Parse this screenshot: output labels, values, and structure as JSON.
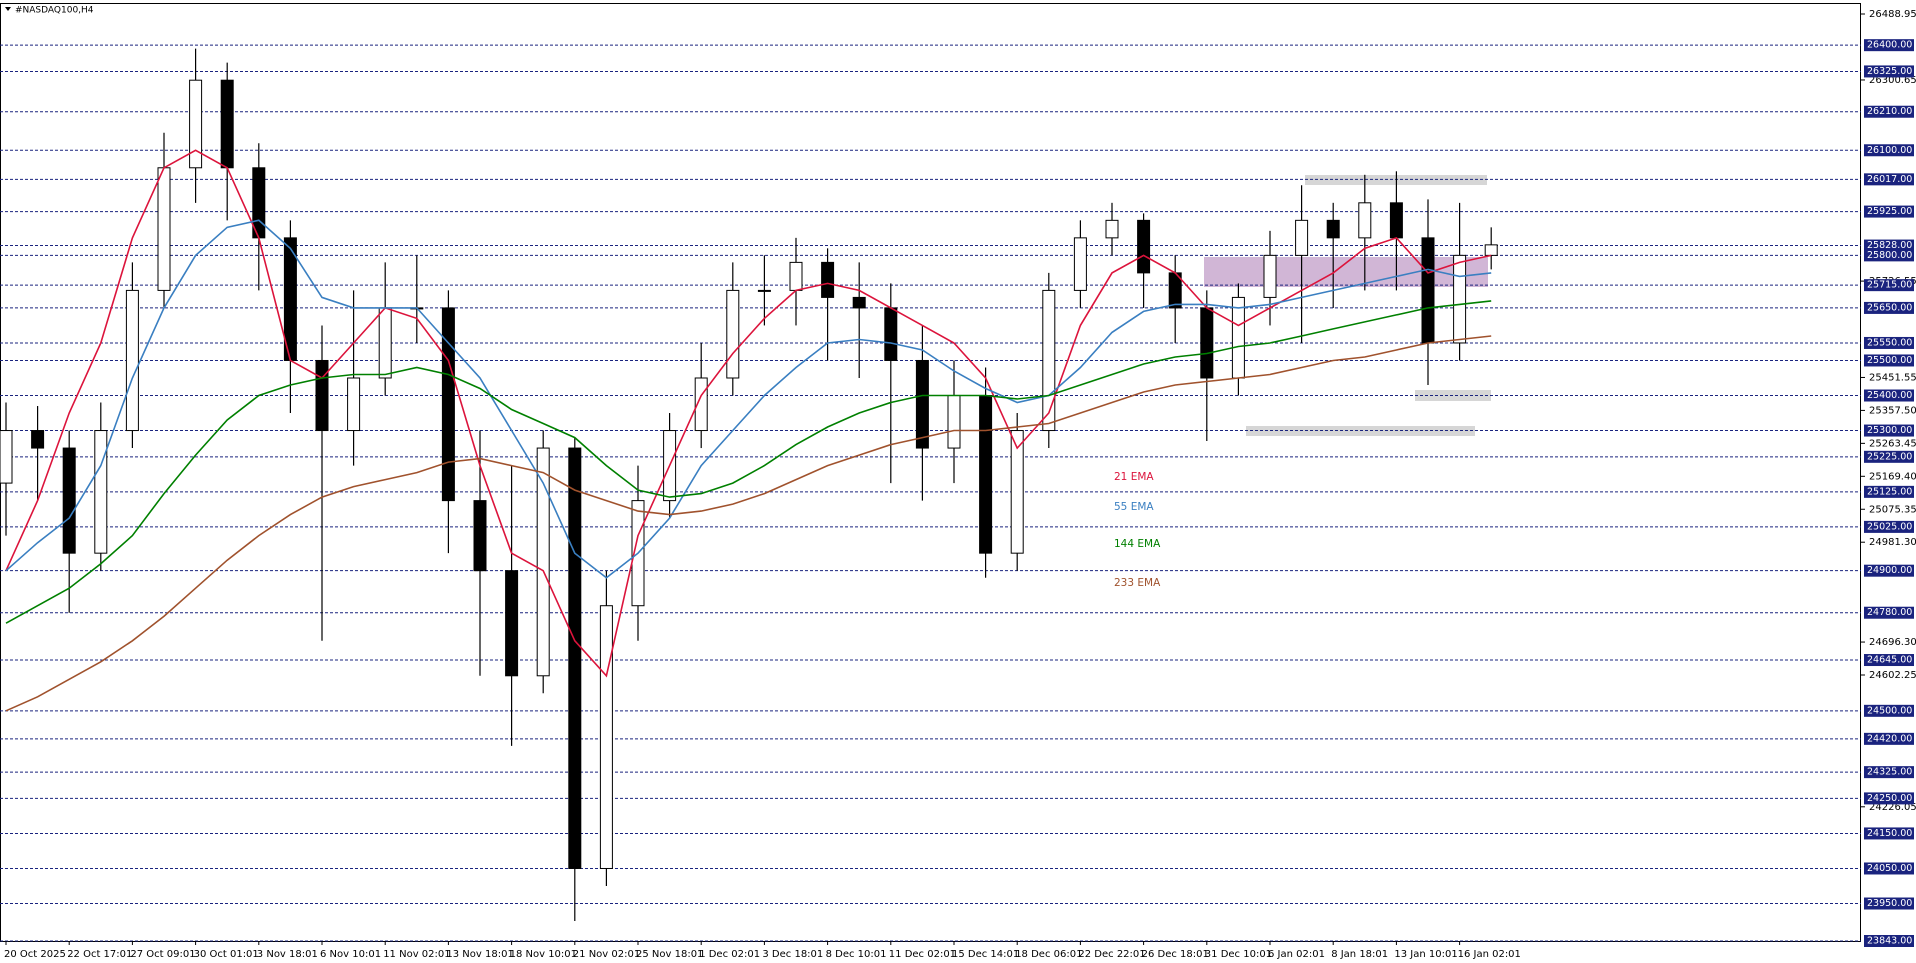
{
  "chart_data": {
    "type": "candlestick",
    "title": "#NASDAQ100,H4",
    "categories": [
      "20 Oct 2025",
      null,
      "22 Oct 17:01",
      null,
      "27 Oct 09:01",
      null,
      "30 Oct 01:01",
      null,
      "3 Nov 18:01",
      null,
      "6 Nov 10:01",
      null,
      "11 Nov 02:01",
      null,
      "13 Nov 18:01",
      null,
      "18 Nov 10:01",
      null,
      "21 Nov 02:01",
      null,
      "25 Nov 18:01",
      null,
      "1 Dec 02:01",
      null,
      "3 Dec 18:01",
      null,
      "8 Dec 10:01",
      null,
      "11 Dec 02:01",
      null,
      "15 Dec 14:01",
      null,
      "18 Dec 06:01",
      null,
      "22 Dec 22:01",
      null,
      "26 Dec 18:01",
      null,
      "31 Dec 10:01",
      null,
      "6 Jan 02:01",
      null,
      "8 Jan 18:01",
      null,
      "13 Jan 10:01",
      null,
      "16 Jan 02:01",
      null
    ],
    "open": [
      25150,
      25300,
      25250,
      24950,
      25300,
      25700,
      26050,
      26300,
      26050,
      25850,
      25500,
      25300,
      25450,
      25650,
      25650,
      25100,
      24900,
      24600,
      25250,
      24050,
      24800,
      25100,
      25300,
      25450,
      25700,
      25700,
      25780,
      25680,
      25650,
      25500,
      25250,
      25400,
      24950,
      25300,
      25700,
      25850,
      25900,
      25750,
      25650,
      25450,
      25680,
      25800,
      25900,
      25850,
      25950,
      25850,
      25550,
      25800
    ],
    "high": [
      25380,
      25370,
      25300,
      25380,
      25780,
      26150,
      26390,
      26350,
      26120,
      25900,
      25600,
      25700,
      25780,
      25800,
      25700,
      25300,
      25200,
      25300,
      25280,
      24900,
      25200,
      25350,
      25550,
      25780,
      25800,
      25850,
      25820,
      25780,
      25720,
      25600,
      25500,
      25480,
      25350,
      25750,
      25900,
      25950,
      25920,
      25800,
      25700,
      25720,
      25870,
      26000,
      25950,
      26030,
      26040,
      25960,
      25950,
      25880
    ],
    "low": [
      25000,
      25100,
      24780,
      24900,
      25250,
      25650,
      25950,
      25900,
      25700,
      25350,
      24700,
      25200,
      25400,
      25550,
      24950,
      24600,
      24400,
      24550,
      23900,
      24000,
      24700,
      25050,
      25250,
      25400,
      25600,
      25600,
      25500,
      25450,
      25150,
      25100,
      25150,
      24880,
      24900,
      25250,
      25650,
      25800,
      25650,
      25550,
      25270,
      25400,
      25600,
      25550,
      25650,
      25700,
      25700,
      25430,
      25500,
      25760
    ],
    "close": [
      25300,
      25250,
      24950,
      25300,
      25700,
      26050,
      26300,
      26050,
      25850,
      25500,
      25300,
      25450,
      25650,
      25650,
      25100,
      24900,
      24600,
      25250,
      24050,
      24800,
      25100,
      25300,
      25450,
      25700,
      25700,
      25780,
      25680,
      25650,
      25500,
      25250,
      25400,
      24950,
      25300,
      25700,
      25850,
      25900,
      25750,
      25650,
      25450,
      25680,
      25800,
      25900,
      25850,
      25950,
      25850,
      25550,
      25800,
      25830
    ],
    "up_color": "#ffffff",
    "down_color": "#000000",
    "series": [
      {
        "name": "21 EMA",
        "color": "#dc143c",
        "values": [
          24900,
          25100,
          25350,
          25550,
          25850,
          26050,
          26100,
          26050,
          25850,
          25500,
          25450,
          25550,
          25650,
          25620,
          25500,
          25200,
          24950,
          24900,
          24700,
          24600,
          25000,
          25200,
          25400,
          25520,
          25620,
          25700,
          25720,
          25700,
          25650,
          25600,
          25550,
          25450,
          25250,
          25350,
          25600,
          25750,
          25800,
          25750,
          25650,
          25600,
          25650,
          25700,
          25750,
          25820,
          25850,
          25750,
          25780,
          25800
        ]
      },
      {
        "name": "55 EMA",
        "color": "#3a7fc1",
        "values": [
          24900,
          24980,
          25050,
          25200,
          25450,
          25650,
          25800,
          25880,
          25900,
          25820,
          25680,
          25650,
          25650,
          25650,
          25550,
          25450,
          25300,
          25150,
          24950,
          24880,
          24950,
          25050,
          25200,
          25300,
          25400,
          25480,
          25550,
          25560,
          25550,
          25530,
          25470,
          25420,
          25380,
          25400,
          25480,
          25580,
          25640,
          25660,
          25660,
          25650,
          25660,
          25680,
          25700,
          25720,
          25740,
          25760,
          25740,
          25750
        ]
      },
      {
        "name": "144 EMA",
        "color": "#008000",
        "values": [
          24750,
          24800,
          24850,
          24920,
          25000,
          25120,
          25230,
          25330,
          25400,
          25430,
          25450,
          25460,
          25460,
          25480,
          25460,
          25420,
          25360,
          25320,
          25280,
          25200,
          25130,
          25110,
          25120,
          25150,
          25200,
          25260,
          25310,
          25350,
          25380,
          25400,
          25400,
          25400,
          25390,
          25400,
          25430,
          25460,
          25490,
          25510,
          25520,
          25540,
          25550,
          25570,
          25590,
          25610,
          25630,
          25650,
          25660,
          25670
        ]
      },
      {
        "name": "233 EMA",
        "color": "#a0522d",
        "values": [
          24500,
          24540,
          24590,
          24640,
          24700,
          24770,
          24850,
          24930,
          25000,
          25060,
          25110,
          25140,
          25160,
          25180,
          25210,
          25220,
          25200,
          25180,
          25130,
          25100,
          25070,
          25060,
          25070,
          25090,
          25120,
          25160,
          25200,
          25230,
          25260,
          25280,
          25300,
          25300,
          25310,
          25320,
          25350,
          25380,
          25410,
          25430,
          25440,
          25450,
          25460,
          25480,
          25500,
          25510,
          25530,
          25550,
          25560,
          25570
        ]
      }
    ],
    "ylim": [
      23843,
      26488.95
    ],
    "yticks": [
      26488.95,
      26300.65,
      25726.55,
      25451.55,
      {
        "value": 25357.5,
        "label": "25357.50"
      },
      25263.45,
      {
        "value": 25169.4,
        "label": "25169.40"
      },
      25075.35,
      {
        "value": 24981.3,
        "label": "24981.30"
      },
      {
        "value": 24696.3,
        "label": "24696.30"
      },
      24602.25,
      24226.05
    ],
    "levels": [
      {
        "value": 26400,
        "label": "26400.00"
      },
      {
        "value": 26325,
        "label": "26325.00"
      },
      {
        "value": 26210,
        "label": "26210.00"
      },
      {
        "value": 26100,
        "label": "26100.00"
      },
      {
        "value": 26017,
        "label": "26017.00"
      },
      {
        "value": 25925,
        "label": "25925.00"
      },
      {
        "value": 25828,
        "label": "25828.00"
      },
      {
        "value": 25800,
        "label": "25800.00"
      },
      {
        "value": 25715,
        "label": "25715.00"
      },
      {
        "value": 25650,
        "label": "25650.00"
      },
      {
        "value": 25550,
        "label": "25550.00"
      },
      {
        "value": 25500,
        "label": "25500.00"
      },
      {
        "value": 25400,
        "label": "25400.00"
      },
      {
        "value": 25300,
        "label": "25300.00"
      },
      {
        "value": 25225,
        "label": "25225.00"
      },
      {
        "value": 25125,
        "label": "25125.00"
      },
      {
        "value": 25025,
        "label": "25025.00"
      },
      {
        "value": 24900,
        "label": "24900.00"
      },
      {
        "value": 24780,
        "label": "24780.00"
      },
      {
        "value": 24645,
        "label": "24645.00"
      },
      {
        "value": 24500,
        "label": "24500.00"
      },
      {
        "value": 24420,
        "label": "24420.00"
      },
      {
        "value": 24325,
        "label": "24325.00"
      },
      {
        "value": 24250,
        "label": "24250.00"
      },
      {
        "value": 24150,
        "label": "24150.00"
      },
      {
        "value": 24050,
        "label": "24050.00"
      },
      {
        "value": 23950,
        "label": "23950.00"
      },
      {
        "value": 23843,
        "label": "23843.00"
      }
    ],
    "level_color": "#1a237e",
    "grid": false
  }
}
